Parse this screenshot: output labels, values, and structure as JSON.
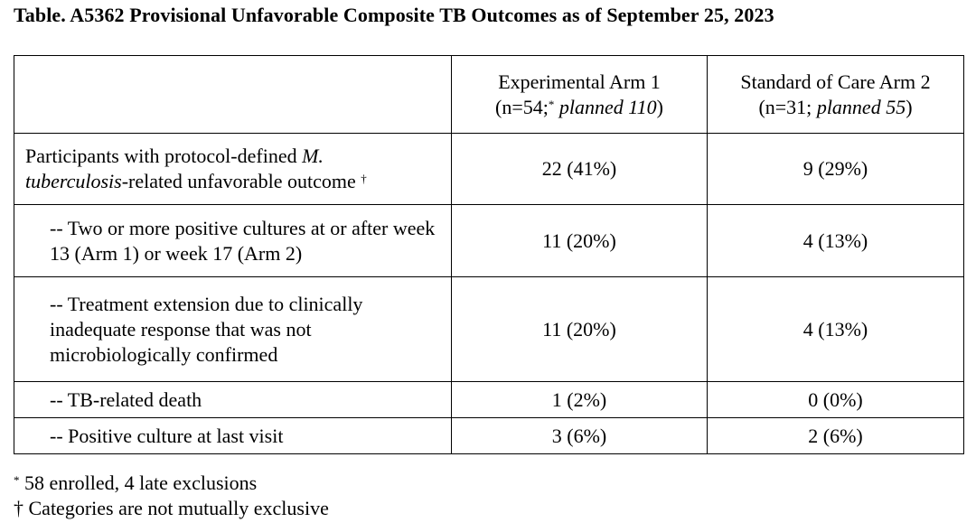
{
  "title": "Table. A5362 Provisional Unfavorable Composite TB Outcomes as of September 25, 2023",
  "columns": [
    {
      "name": "Experimental Arm 1",
      "n_prefix": "(n=54;",
      "n_mark": "*",
      "n_planned": "planned 110",
      "n_suffix": ")"
    },
    {
      "name": "Standard of Care Arm 2",
      "n_prefix": "(n=31;",
      "n_mark": "",
      "n_planned": "planned 55",
      "n_suffix": ")"
    }
  ],
  "rows": [
    {
      "label_part1": "Participants with protocol-defined ",
      "label_italic1": "M.",
      "label_italic2": "tuberculosis",
      "label_part2": "-related unfavorable outcome ",
      "label_mark": "†",
      "arm1": "22 (41%)",
      "arm2": "9 (29%)"
    },
    {
      "label": "-- Two or more positive cultures at or after week 13 (Arm 1) or week 17 (Arm 2)",
      "arm1": "11 (20%)",
      "arm2": "4 (13%)"
    },
    {
      "label": "-- Treatment extension due to clinically inadequate response that was not microbiologically confirmed",
      "arm1": "11 (20%)",
      "arm2": "4 (13%)"
    },
    {
      "label": "-- TB-related death",
      "arm1": "1 (2%)",
      "arm2": "0 (0%)"
    },
    {
      "label": "-- Positive culture at last visit",
      "arm1": "3 (6%)",
      "arm2": "2 (6%)"
    }
  ],
  "footnotes": [
    {
      "mark": "*",
      "text": " 58 enrolled, 4 late exclusions"
    },
    {
      "mark": "†",
      "text": " Categories are not mutually exclusive"
    }
  ]
}
